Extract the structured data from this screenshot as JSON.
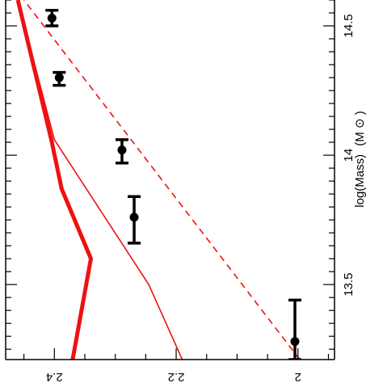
{
  "chart_data": {
    "type": "line",
    "orientation": "rotated-90",
    "xlabel": "log(Mass)",
    "xlabel_unit": "(M",
    "xlabel_unit_close": ")",
    "xlim": [
      13.21,
      14.6
    ],
    "ylim": [
      1.94,
      2.48
    ],
    "x_ticks": [
      13.5,
      14,
      14.5
    ],
    "x_tick_labels": [
      "13.5",
      "14",
      "14.5"
    ],
    "y_ticks": [
      2.0,
      2.2,
      2.4
    ],
    "y_tick_labels": [
      "2",
      "2.2",
      "2.4"
    ],
    "grid": false,
    "series": [
      {
        "style": "thick-solid",
        "color": "#ee1111",
        "points": [
          [
            13.21,
            2.37
          ],
          [
            13.6,
            2.34
          ],
          [
            13.87,
            2.388
          ],
          [
            14.06,
            2.405
          ],
          [
            14.6,
            2.46
          ]
        ]
      },
      {
        "style": "thin-solid",
        "color": "#ee1111",
        "points": [
          [
            13.21,
            2.19
          ],
          [
            13.5,
            2.245
          ],
          [
            14.06,
            2.4
          ],
          [
            14.6,
            2.46
          ]
        ]
      },
      {
        "style": "dashed",
        "color": "#ee1111",
        "points": [
          [
            13.21,
            1.997
          ],
          [
            14.6,
            2.45
          ]
        ]
      }
    ],
    "points": [
      {
        "x": 13.28,
        "y": 2.005,
        "xerr_low": 13.21,
        "xerr_high": 13.44
      },
      {
        "x": 13.76,
        "y": 2.269,
        "xerr_low": 13.66,
        "xerr_high": 13.84
      },
      {
        "x": 14.02,
        "y": 2.289,
        "xerr_low": 13.97,
        "xerr_high": 14.06
      },
      {
        "x": 14.3,
        "y": 2.392,
        "xerr_low": 14.27,
        "xerr_high": 14.32
      },
      {
        "x": 14.53,
        "y": 2.404,
        "xerr_low": 14.5,
        "xerr_high": 14.56
      }
    ]
  }
}
